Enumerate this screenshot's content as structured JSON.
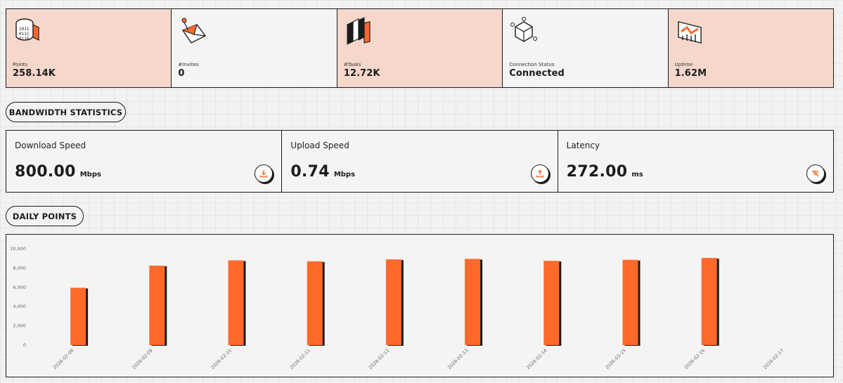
{
  "stats": [
    {
      "label": "Points",
      "value": "258.14K",
      "icon": "binary-cylinder-icon",
      "accent": true
    },
    {
      "label": "#Invites",
      "value": "0",
      "icon": "envelope-icon",
      "accent": false
    },
    {
      "label": "#Tasks",
      "value": "12.72K",
      "icon": "books-icon",
      "accent": true
    },
    {
      "label": "Connection Status",
      "value": "Connected",
      "icon": "cube-network-icon",
      "accent": false
    },
    {
      "label": "Uptime",
      "value": "1.62M",
      "icon": "chart-growth-icon",
      "accent": true
    }
  ],
  "bandwidth": {
    "heading": "BANDWIDTH STATISTICS",
    "items": [
      {
        "title": "Download Speed",
        "value": "800.00",
        "unit": "Mbps",
        "icon": "download-icon"
      },
      {
        "title": "Upload Speed",
        "value": "0.74",
        "unit": "Mbps",
        "icon": "upload-icon"
      },
      {
        "title": "Latency",
        "value": "272.00",
        "unit": "ms",
        "icon": "signal-icon"
      }
    ]
  },
  "daily": {
    "heading": "DAILY POINTS"
  },
  "colors": {
    "accent": "#ff6a2b",
    "card_accent_bg": "#f5d8cb",
    "border": "#1c1c1c"
  },
  "chart_data": {
    "type": "bar",
    "categories": [
      "2026-02-08",
      "2026-02-09",
      "2026-02-10",
      "2026-02-11",
      "2026-02-12",
      "2026-02-13",
      "2026-02-14",
      "2026-02-15",
      "2026-02-16",
      "2026-02-17"
    ],
    "values": [
      5950,
      8250,
      8800,
      8700,
      8900,
      8950,
      8750,
      8850,
      9050,
      null
    ],
    "ylim": [
      0,
      10000
    ],
    "yticks": [
      "0",
      "2,000",
      "4,000",
      "6,000",
      "8,000",
      "10,000"
    ],
    "grid": false,
    "legend": "none"
  }
}
